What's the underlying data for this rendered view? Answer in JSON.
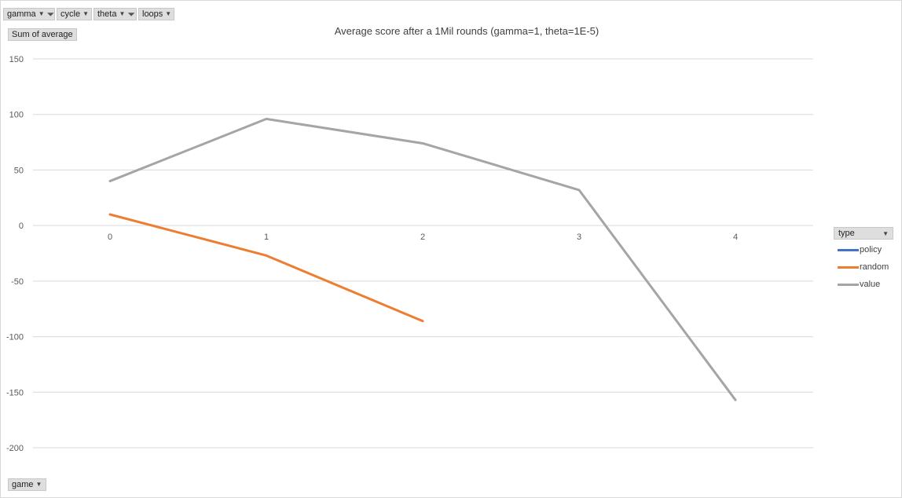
{
  "filters": [
    {
      "label": "gamma",
      "filtered": true
    },
    {
      "label": "cycle",
      "filtered": false
    },
    {
      "label": "theta",
      "filtered": true
    },
    {
      "label": "loops",
      "filtered": false
    }
  ],
  "value_field": "Sum of average",
  "axis_field": "game",
  "legend": {
    "title": "type",
    "items": [
      {
        "label": "policy",
        "color": "#4472c4"
      },
      {
        "label": "random",
        "color": "#ed7d31"
      },
      {
        "label": "value",
        "color": "#a5a5a5"
      }
    ]
  },
  "chart_data": {
    "type": "line",
    "title": "Average score after a 1Mil rounds (gamma=1, theta=1E-5)",
    "xlabel": "",
    "ylabel": "",
    "categories": [
      "0",
      "1",
      "2",
      "3",
      "4"
    ],
    "ylim": [
      -200,
      150
    ],
    "yticks": [
      150,
      100,
      50,
      0,
      -50,
      -100,
      -150,
      -200
    ],
    "grid": true,
    "legend_position": "right",
    "series": [
      {
        "name": "policy",
        "color": "#4472c4",
        "values": [
          null,
          null,
          null,
          null,
          null
        ]
      },
      {
        "name": "random",
        "color": "#ed7d31",
        "values": [
          10,
          -27,
          -86,
          null,
          null
        ]
      },
      {
        "name": "value",
        "color": "#a5a5a5",
        "values": [
          40,
          96,
          74,
          32,
          -157
        ]
      }
    ]
  }
}
